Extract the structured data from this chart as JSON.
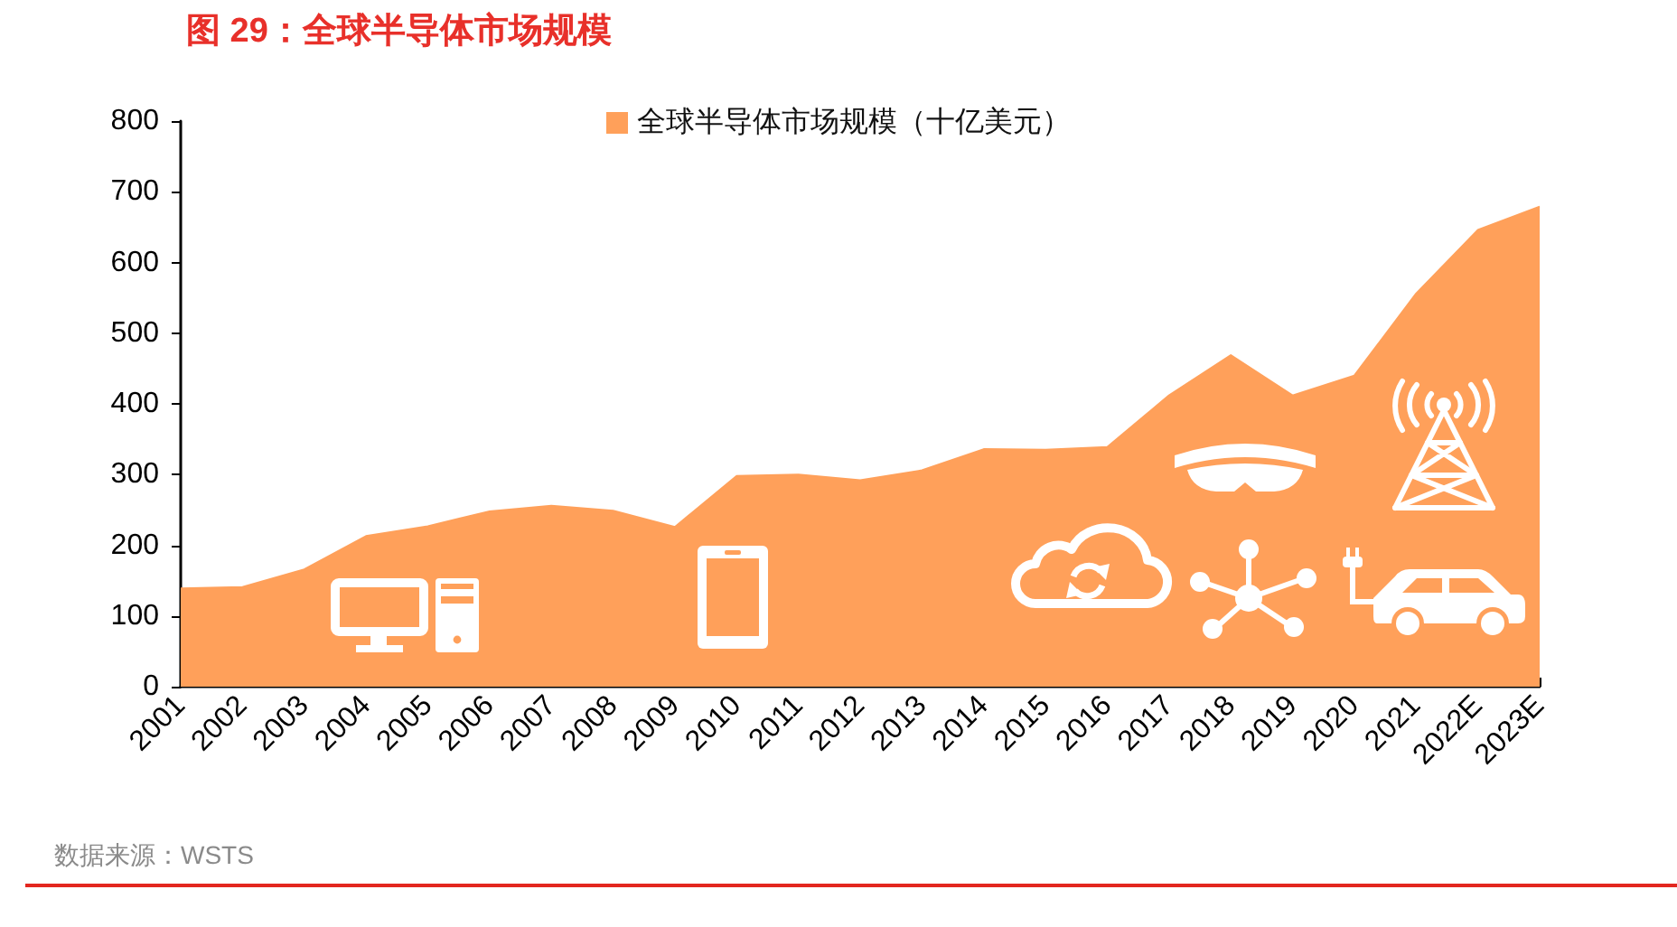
{
  "chart_data": {
    "type": "area",
    "title": "图 29：全球半导体市场规模",
    "categories": [
      "2001",
      "2002",
      "2003",
      "2004",
      "2005",
      "2006",
      "2007",
      "2008",
      "2009",
      "2010",
      "2011",
      "2012",
      "2013",
      "2014",
      "2015",
      "2016",
      "2017",
      "2018",
      "2019",
      "2020",
      "2021",
      "2022E",
      "2023E"
    ],
    "series": [
      {
        "name": "全球半导体市场规模（十亿美元）",
        "color": "#ffa05a",
        "values": [
          139,
          141,
          166,
          213,
          227,
          248,
          256,
          249,
          226,
          298,
          300,
          292,
          306,
          336,
          335,
          339,
          412,
          469,
          412,
          440,
          556,
          646,
          679
        ]
      }
    ],
    "ylim": [
      0,
      800
    ],
    "yticks": [
      0,
      100,
      200,
      300,
      400,
      500,
      600,
      700,
      800
    ],
    "legend": "top",
    "annotations": [
      "数据来源：WSTS"
    ]
  }
}
